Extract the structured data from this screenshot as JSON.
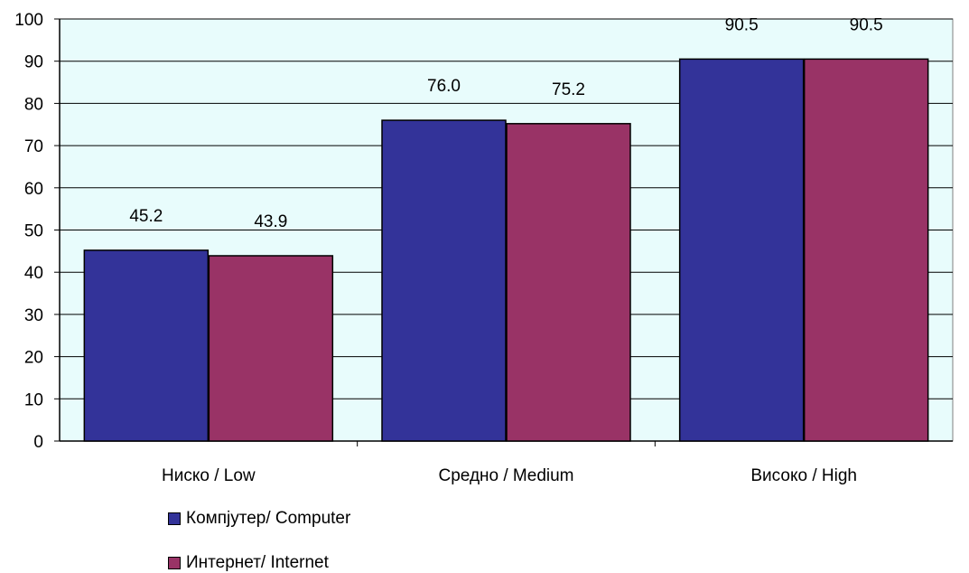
{
  "chart_data": {
    "type": "bar",
    "categories": [
      "Ниско / Low",
      "Средно / Medium",
      "Високо / High"
    ],
    "series": [
      {
        "name": "Компјутер/ Computer",
        "values": [
          45.2,
          76.0,
          90.5
        ],
        "labels": [
          "45.2",
          "76.0",
          "90.5"
        ],
        "color": "#333399"
      },
      {
        "name": "Интернет/ Internet",
        "values": [
          43.9,
          75.2,
          90.5
        ],
        "labels": [
          "43.9",
          "75.2",
          "90.5"
        ],
        "color": "#993366"
      }
    ],
    "ylim": [
      0,
      100
    ],
    "yticks": [
      "0",
      "10",
      "20",
      "30",
      "40",
      "50",
      "60",
      "70",
      "80",
      "90",
      "100"
    ],
    "grid": true,
    "plot_background": "#e8fcfc",
    "legend_placement": "bottom-left",
    "title": "",
    "xlabel": "",
    "ylabel": ""
  }
}
